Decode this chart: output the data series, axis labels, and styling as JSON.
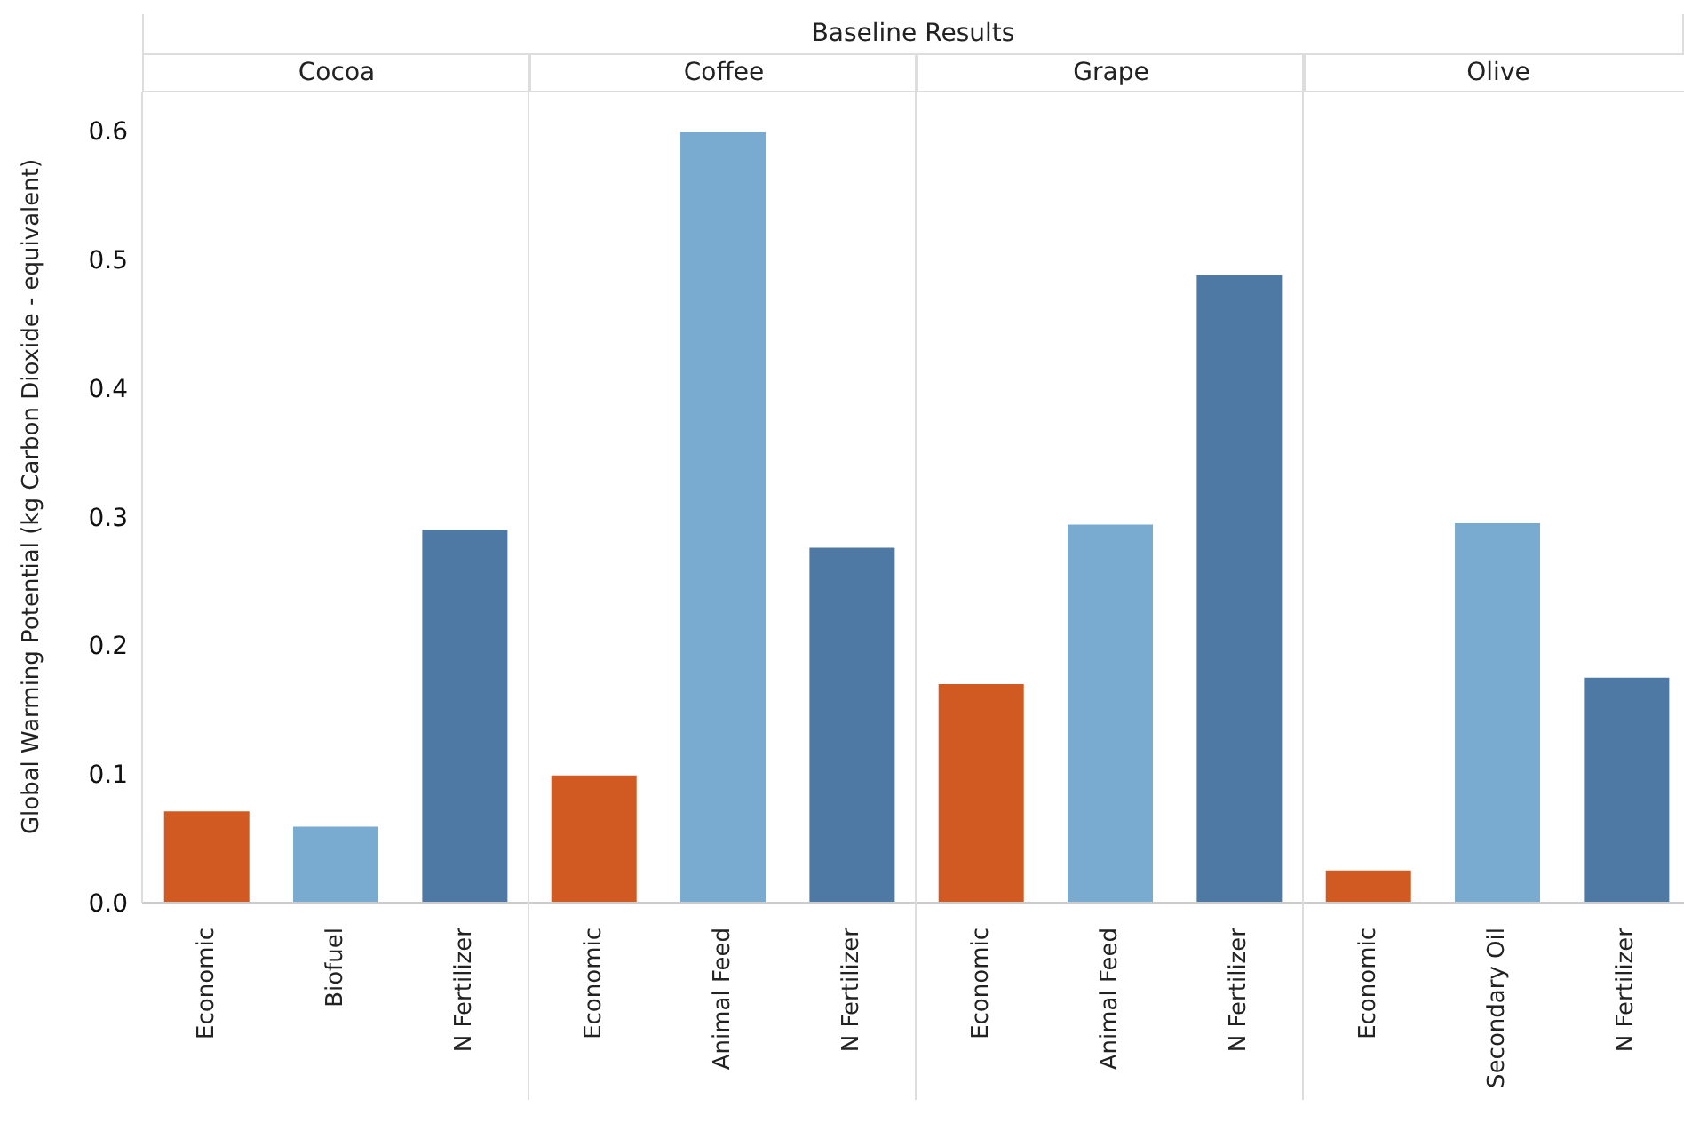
{
  "chart_data": [
    {
      "type": "bar",
      "title": "Cocoa",
      "annotations": [
        "Baseline Results"
      ],
      "ylabel": "Global Warming Potential (kg Carbon Dioxide - equivalent)",
      "categories": [
        "Economic",
        "Biofuel",
        "N Fertilizer"
      ],
      "values": [
        0.071,
        0.059,
        0.29
      ],
      "colors": [
        "#d15a22",
        "#79aad0",
        "#4e79a5"
      ],
      "ylim": [
        0,
        0.63
      ],
      "yticks": [
        {
          "value": 0,
          "label": "0.0"
        },
        0.1,
        0.2,
        0.3,
        0.4,
        0.5,
        0.6
      ]
    },
    {
      "type": "bar",
      "title": "Coffee",
      "categories": [
        "Economic",
        "Animal Feed",
        "N Fertilizer"
      ],
      "values": [
        0.099,
        0.599,
        0.276
      ],
      "colors": [
        "#d15a22",
        "#79aad0",
        "#4e79a5"
      ],
      "ylim": [
        0,
        0.63
      ],
      "yticks": [
        0.0,
        0.1,
        0.2,
        0.3,
        0.4,
        0.5,
        0.6
      ],
      "tick_labels": "x"
    },
    {
      "type": "bar",
      "title": "Grape",
      "categories": [
        "Economic",
        "Animal Feed",
        "N Fertilizer"
      ],
      "values": [
        0.17,
        0.294,
        0.488
      ],
      "colors": [
        "#d15a22",
        "#79aad0",
        "#4e79a5"
      ],
      "ylim": [
        0,
        0.63
      ],
      "yticks": [
        0.0,
        0.1,
        0.2,
        0.3,
        0.4,
        0.5,
        0.6
      ],
      "tick_labels": "x"
    },
    {
      "type": "bar",
      "title": "Olive",
      "categories": [
        "Economic",
        "Secondary Oil",
        "N Fertilizer"
      ],
      "values": [
        0.025,
        0.295,
        0.175
      ],
      "colors": [
        "#d15a22",
        "#79aad0",
        "#4e79a5"
      ],
      "ylim": [
        0,
        0.63
      ],
      "yticks": [
        0.0,
        0.1,
        0.2,
        0.3,
        0.4,
        0.5,
        0.6
      ],
      "tick_labels": "x"
    }
  ]
}
